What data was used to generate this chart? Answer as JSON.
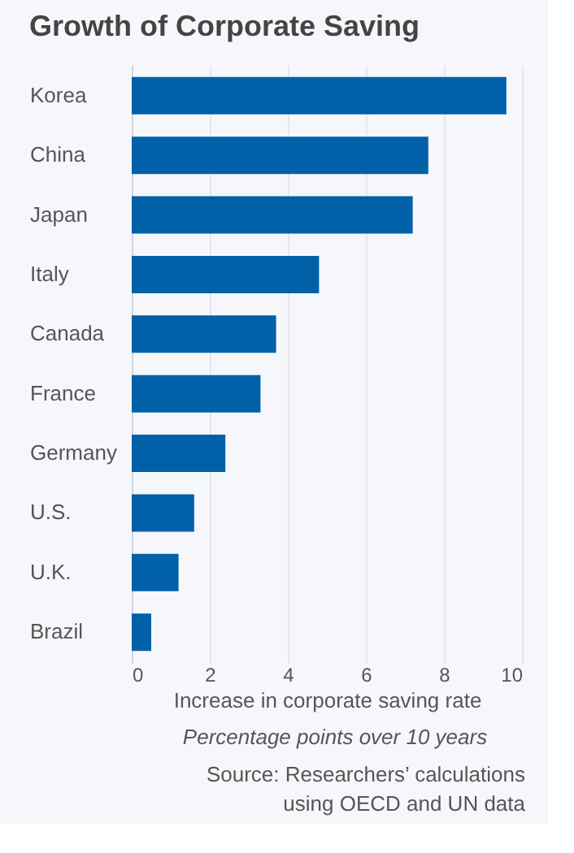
{
  "chart_data": {
    "type": "bar",
    "orientation": "horizontal",
    "title": "Growth of Corporate Saving",
    "categories": [
      "Korea",
      "China",
      "Japan",
      "Italy",
      "Canada",
      "France",
      "Germany",
      "U.S.",
      "U.K.",
      "Brazil"
    ],
    "values": [
      9.6,
      7.6,
      7.2,
      4.8,
      3.7,
      3.3,
      2.4,
      1.6,
      1.2,
      0.5
    ],
    "color": "#0061a8",
    "xlim": [
      0,
      10
    ],
    "xticks": [
      0,
      2,
      4,
      6,
      8,
      10
    ],
    "grid": "x",
    "xlabel": "Increase in corporate saving rate",
    "annotations": [
      "Percentage points over 10 years",
      "Source: Researchers’ calculations\nusing OECD and UN data"
    ]
  }
}
